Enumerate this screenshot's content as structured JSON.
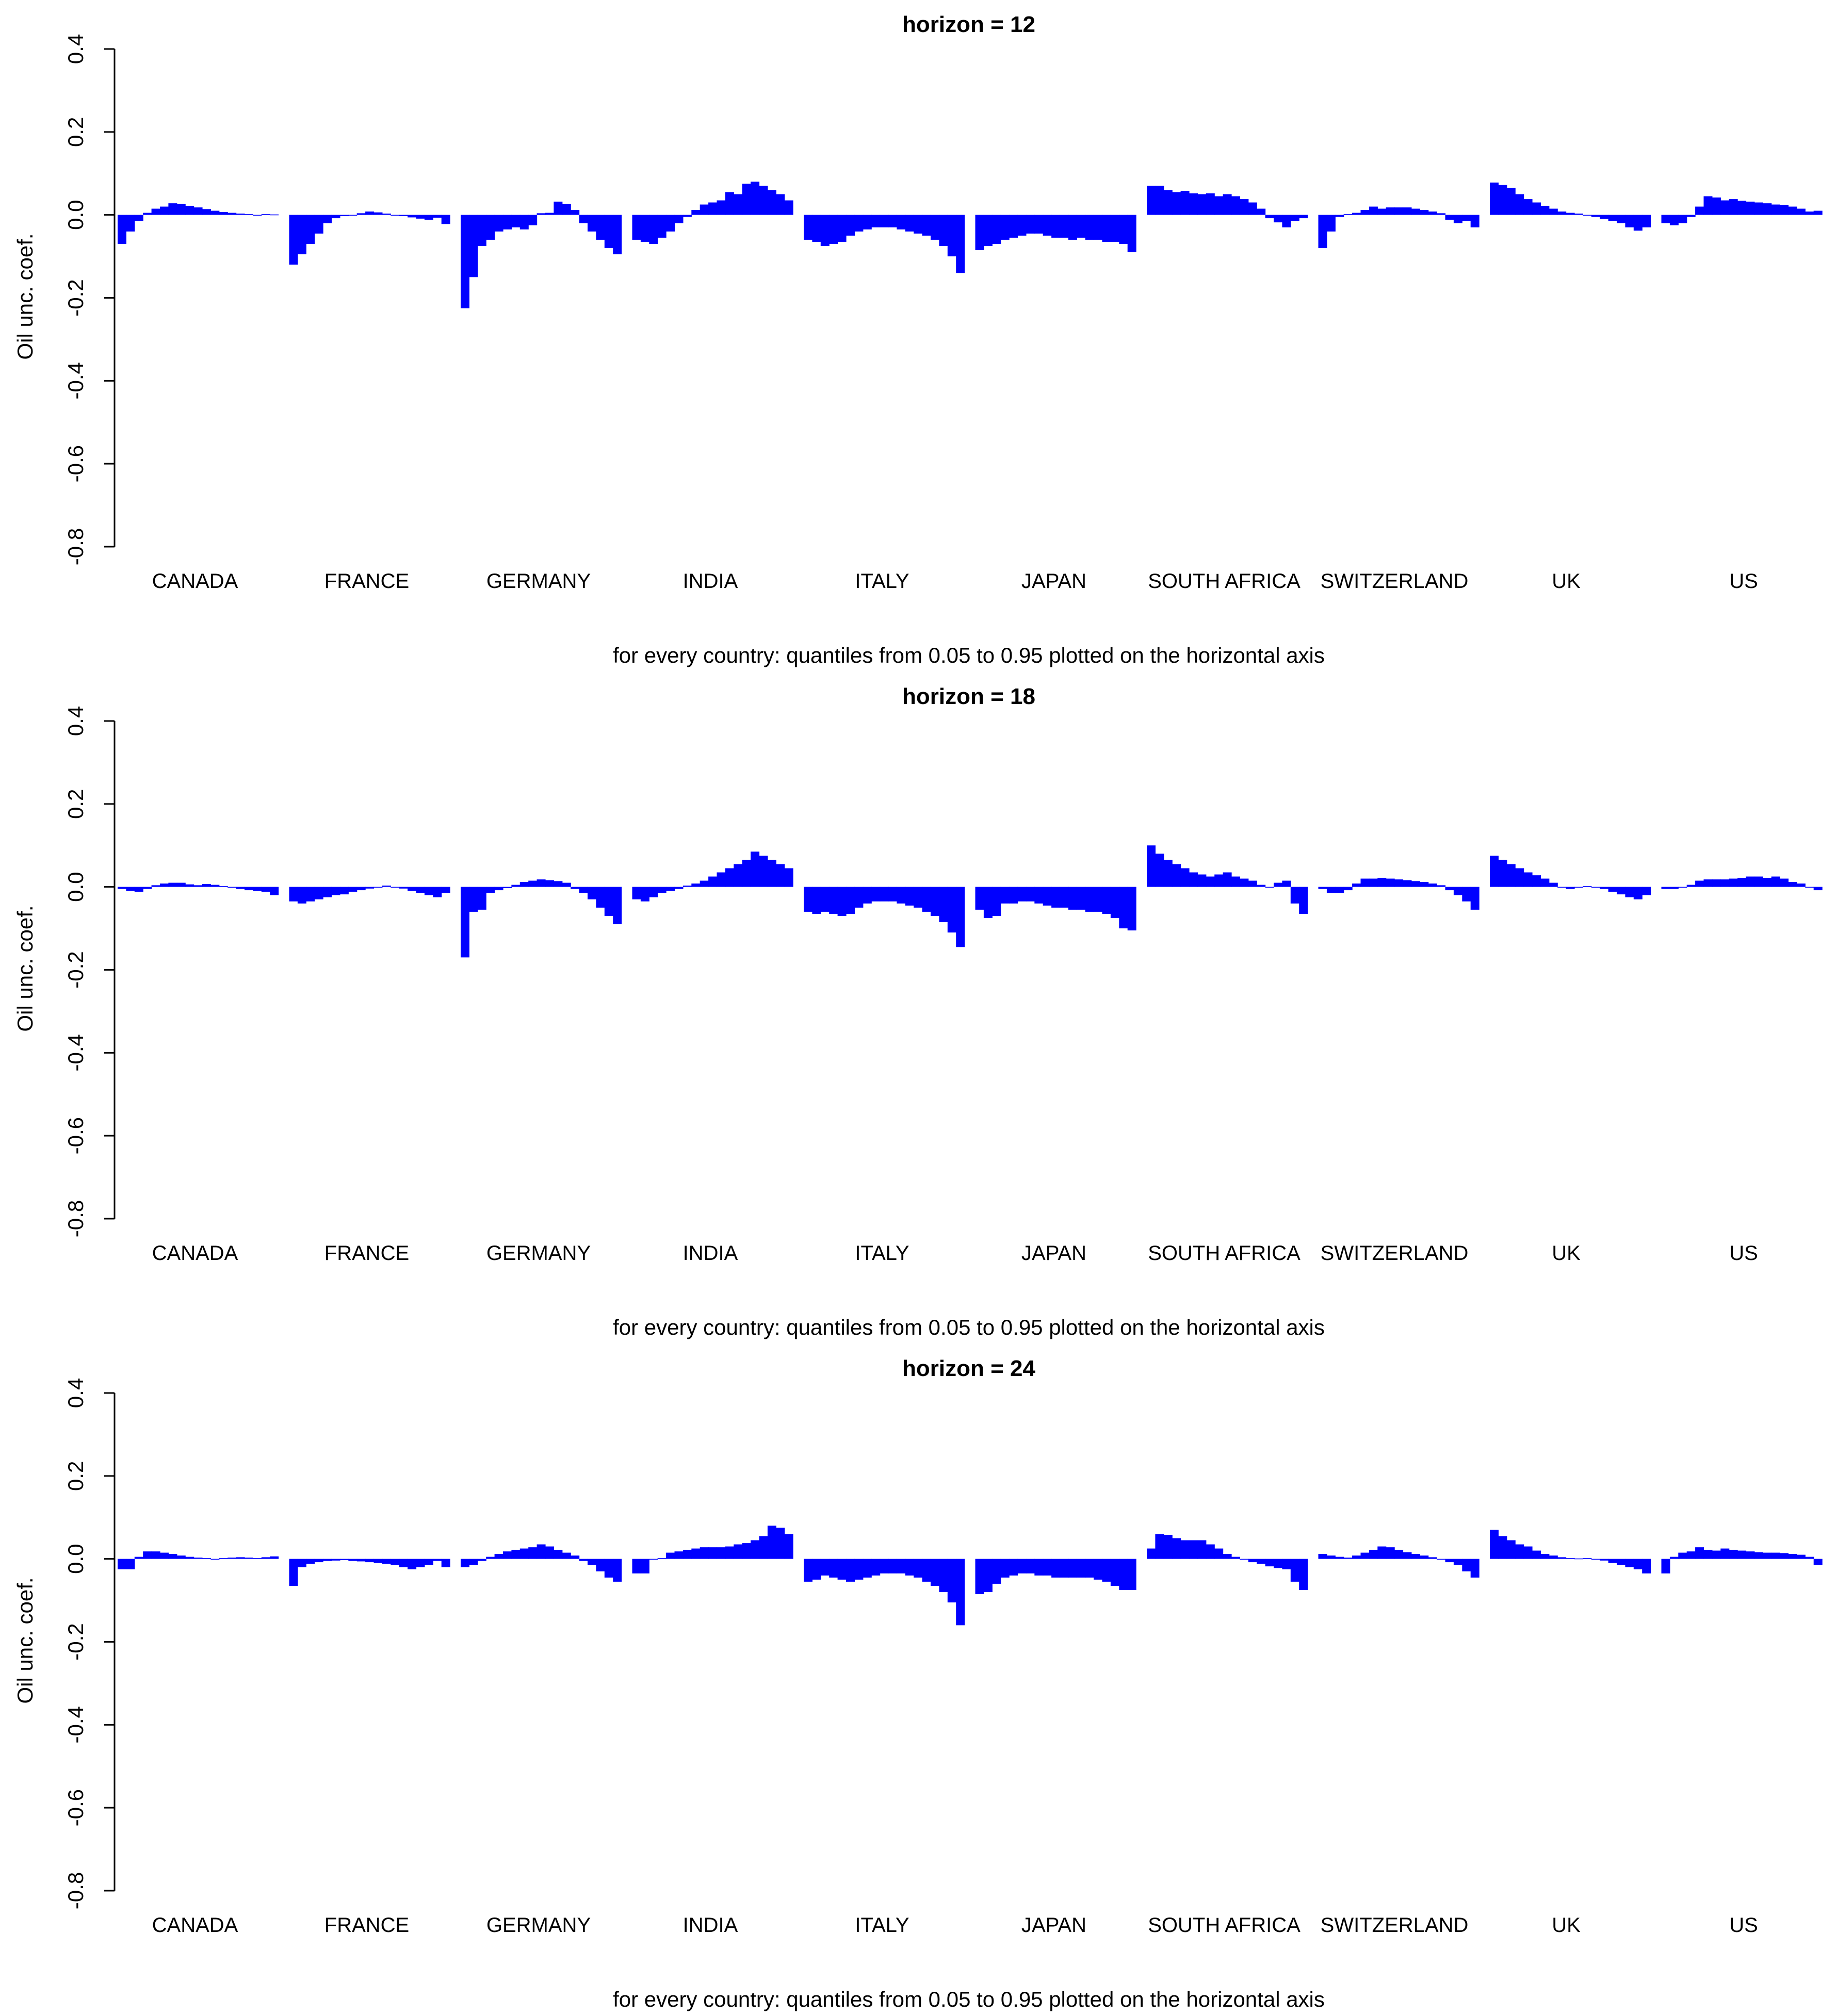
{
  "chart_data": [
    {
      "type": "bar",
      "title": "horizon = 12",
      "xlabel": "for every country: quantiles from 0.05 to 0.95 plotted on the horizontal axis",
      "ylabel": "Oil unc. coef.",
      "ylim": [
        -0.8,
        0.4
      ],
      "yticks": [
        "0.4",
        "0.2",
        "0.0",
        "-0.2",
        "-0.4",
        "-0.6",
        "-0.8"
      ],
      "ytick_values": [
        0.4,
        0.2,
        0.0,
        -0.2,
        -0.4,
        -0.6,
        -0.8
      ],
      "quantiles": [
        0.05,
        0.1,
        0.15,
        0.2,
        0.25,
        0.3,
        0.35,
        0.4,
        0.45,
        0.5,
        0.55,
        0.6,
        0.65,
        0.7,
        0.75,
        0.8,
        0.85,
        0.9,
        0.95
      ],
      "bar_color": "#0000ff",
      "series": [
        {
          "name": "CANADA",
          "values": [
            -0.07,
            -0.04,
            -0.015,
            0.005,
            0.015,
            0.02,
            0.028,
            0.026,
            0.022,
            0.018,
            0.014,
            0.01,
            0.007,
            0.005,
            0.003,
            0.002,
            0.0,
            0.002,
            0.001
          ]
        },
        {
          "name": "FRANCE",
          "values": [
            -0.12,
            -0.095,
            -0.07,
            -0.045,
            -0.02,
            -0.008,
            -0.003,
            0.0,
            0.004,
            0.008,
            0.006,
            0.003,
            0.0,
            -0.003,
            -0.006,
            -0.009,
            -0.012,
            -0.007,
            -0.022
          ]
        },
        {
          "name": "GERMANY",
          "values": [
            -0.225,
            -0.15,
            -0.075,
            -0.06,
            -0.04,
            -0.035,
            -0.03,
            -0.035,
            -0.025,
            0.004,
            0.005,
            0.032,
            0.026,
            0.012,
            -0.02,
            -0.04,
            -0.06,
            -0.08,
            -0.095
          ]
        },
        {
          "name": "INDIA",
          "values": [
            -0.06,
            -0.065,
            -0.07,
            -0.055,
            -0.04,
            -0.02,
            -0.005,
            0.012,
            0.025,
            0.03,
            0.035,
            0.055,
            0.05,
            0.075,
            0.08,
            0.07,
            0.06,
            0.05,
            0.035
          ]
        },
        {
          "name": "ITALY",
          "values": [
            -0.06,
            -0.065,
            -0.075,
            -0.07,
            -0.065,
            -0.05,
            -0.04,
            -0.035,
            -0.03,
            -0.03,
            -0.03,
            -0.035,
            -0.04,
            -0.045,
            -0.05,
            -0.06,
            -0.075,
            -0.1,
            -0.14
          ]
        },
        {
          "name": "JAPAN",
          "values": [
            -0.085,
            -0.075,
            -0.07,
            -0.06,
            -0.055,
            -0.05,
            -0.045,
            -0.045,
            -0.05,
            -0.055,
            -0.055,
            -0.06,
            -0.055,
            -0.06,
            -0.06,
            -0.065,
            -0.065,
            -0.07,
            -0.09
          ]
        },
        {
          "name": "SOUTH AFRICA",
          "values": [
            0.07,
            0.07,
            0.06,
            0.055,
            0.058,
            0.052,
            0.05,
            0.052,
            0.045,
            0.05,
            0.045,
            0.038,
            0.03,
            0.015,
            -0.008,
            -0.018,
            -0.03,
            -0.015,
            -0.008
          ]
        },
        {
          "name": "SWITZERLAND",
          "values": [
            -0.08,
            -0.04,
            -0.005,
            0.002,
            0.005,
            0.012,
            0.02,
            0.015,
            0.018,
            0.018,
            0.018,
            0.015,
            0.012,
            0.008,
            0.004,
            -0.012,
            -0.02,
            -0.015,
            -0.03
          ]
        },
        {
          "name": "UK",
          "values": [
            0.078,
            0.072,
            0.065,
            0.05,
            0.038,
            0.03,
            0.022,
            0.015,
            0.008,
            0.005,
            0.003,
            0.0,
            -0.005,
            -0.01,
            -0.015,
            -0.02,
            -0.03,
            -0.038,
            -0.03
          ]
        },
        {
          "name": "US",
          "values": [
            -0.02,
            -0.025,
            -0.02,
            -0.005,
            0.02,
            0.045,
            0.042,
            0.035,
            0.038,
            0.034,
            0.032,
            0.03,
            0.028,
            0.025,
            0.024,
            0.02,
            0.015,
            0.008,
            0.01
          ]
        }
      ]
    },
    {
      "type": "bar",
      "title": "horizon = 18",
      "xlabel": "for every country: quantiles from 0.05 to 0.95 plotted on the horizontal axis",
      "ylabel": "Oil unc. coef.",
      "ylim": [
        -0.8,
        0.4
      ],
      "yticks": [
        "0.4",
        "0.2",
        "0.0",
        "-0.2",
        "-0.4",
        "-0.6",
        "-0.8"
      ],
      "ytick_values": [
        0.4,
        0.2,
        0.0,
        -0.2,
        -0.4,
        -0.6,
        -0.8
      ],
      "quantiles": [
        0.05,
        0.1,
        0.15,
        0.2,
        0.25,
        0.3,
        0.35,
        0.4,
        0.45,
        0.5,
        0.55,
        0.6,
        0.65,
        0.7,
        0.75,
        0.8,
        0.85,
        0.9,
        0.95
      ],
      "bar_color": "#0000ff",
      "series": [
        {
          "name": "CANADA",
          "values": [
            -0.005,
            -0.01,
            -0.012,
            -0.005,
            0.004,
            0.008,
            0.01,
            0.01,
            0.006,
            0.004,
            0.007,
            0.005,
            0.002,
            -0.002,
            -0.005,
            -0.008,
            -0.01,
            -0.012,
            -0.02
          ]
        },
        {
          "name": "FRANCE",
          "values": [
            -0.035,
            -0.04,
            -0.035,
            -0.03,
            -0.025,
            -0.02,
            -0.018,
            -0.012,
            -0.008,
            -0.004,
            0.0,
            0.003,
            0.0,
            -0.004,
            -0.01,
            -0.015,
            -0.02,
            -0.025,
            -0.015
          ]
        },
        {
          "name": "GERMANY",
          "values": [
            -0.17,
            -0.06,
            -0.055,
            -0.015,
            -0.008,
            -0.003,
            0.005,
            0.012,
            0.015,
            0.018,
            0.016,
            0.014,
            0.01,
            -0.005,
            -0.015,
            -0.03,
            -0.05,
            -0.07,
            -0.09
          ]
        },
        {
          "name": "INDIA",
          "values": [
            -0.03,
            -0.035,
            -0.025,
            -0.015,
            -0.01,
            -0.005,
            0.003,
            0.008,
            0.015,
            0.025,
            0.035,
            0.045,
            0.055,
            0.065,
            0.085,
            0.075,
            0.065,
            0.055,
            0.045
          ]
        },
        {
          "name": "ITALY",
          "values": [
            -0.06,
            -0.065,
            -0.06,
            -0.065,
            -0.07,
            -0.065,
            -0.05,
            -0.04,
            -0.035,
            -0.035,
            -0.035,
            -0.04,
            -0.045,
            -0.05,
            -0.06,
            -0.07,
            -0.085,
            -0.11,
            -0.145
          ]
        },
        {
          "name": "JAPAN",
          "values": [
            -0.055,
            -0.075,
            -0.07,
            -0.04,
            -0.04,
            -0.035,
            -0.035,
            -0.04,
            -0.045,
            -0.05,
            -0.05,
            -0.055,
            -0.055,
            -0.06,
            -0.06,
            -0.065,
            -0.075,
            -0.1,
            -0.105
          ]
        },
        {
          "name": "SOUTH AFRICA",
          "values": [
            0.1,
            0.08,
            0.065,
            0.055,
            0.045,
            0.035,
            0.03,
            0.025,
            0.03,
            0.035,
            0.025,
            0.02,
            0.015,
            0.005,
            0.0,
            0.01,
            0.015,
            -0.04,
            -0.065
          ]
        },
        {
          "name": "SWITZERLAND",
          "values": [
            -0.005,
            -0.015,
            -0.015,
            -0.008,
            0.008,
            0.02,
            0.02,
            0.022,
            0.02,
            0.018,
            0.016,
            0.014,
            0.012,
            0.008,
            0.004,
            -0.008,
            -0.02,
            -0.035,
            -0.055
          ]
        },
        {
          "name": "UK",
          "values": [
            0.075,
            0.065,
            0.055,
            0.045,
            0.035,
            0.028,
            0.02,
            0.01,
            0.0,
            -0.005,
            0.0,
            0.002,
            0.0,
            -0.005,
            -0.012,
            -0.018,
            -0.025,
            -0.03,
            -0.02
          ]
        },
        {
          "name": "US",
          "values": [
            -0.005,
            -0.005,
            0.0,
            0.005,
            0.015,
            0.018,
            0.018,
            0.018,
            0.02,
            0.022,
            0.025,
            0.025,
            0.022,
            0.025,
            0.02,
            0.012,
            0.008,
            0.0,
            -0.008
          ]
        }
      ]
    },
    {
      "type": "bar",
      "title": "horizon = 24",
      "xlabel": "for every country: quantiles from 0.05 to 0.95 plotted on the horizontal axis",
      "ylabel": "Oil unc. coef.",
      "ylim": [
        -0.8,
        0.4
      ],
      "yticks": [
        "0.4",
        "0.2",
        "0.0",
        "-0.2",
        "-0.4",
        "-0.6",
        "-0.8"
      ],
      "ytick_values": [
        0.4,
        0.2,
        0.0,
        -0.2,
        -0.4,
        -0.6,
        -0.8
      ],
      "quantiles": [
        0.05,
        0.1,
        0.15,
        0.2,
        0.25,
        0.3,
        0.35,
        0.4,
        0.45,
        0.5,
        0.55,
        0.6,
        0.65,
        0.7,
        0.75,
        0.8,
        0.85,
        0.9,
        0.95
      ],
      "bar_color": "#0000ff",
      "series": [
        {
          "name": "CANADA",
          "values": [
            -0.025,
            -0.025,
            0.005,
            0.018,
            0.018,
            0.015,
            0.012,
            0.008,
            0.005,
            0.003,
            0.002,
            0.0,
            0.002,
            0.003,
            0.004,
            0.003,
            0.002,
            0.004,
            0.006
          ]
        },
        {
          "name": "FRANCE",
          "values": [
            -0.065,
            -0.02,
            -0.012,
            -0.008,
            -0.005,
            -0.004,
            -0.003,
            -0.005,
            -0.006,
            -0.008,
            -0.01,
            -0.012,
            -0.015,
            -0.02,
            -0.025,
            -0.02,
            -0.015,
            -0.005,
            -0.02
          ]
        },
        {
          "name": "GERMANY",
          "values": [
            -0.02,
            -0.015,
            -0.005,
            0.005,
            0.012,
            0.018,
            0.022,
            0.025,
            0.028,
            0.035,
            0.03,
            0.022,
            0.015,
            0.008,
            -0.005,
            -0.015,
            -0.03,
            -0.045,
            -0.055
          ]
        },
        {
          "name": "INDIA",
          "values": [
            -0.035,
            -0.035,
            0.0,
            0.002,
            0.015,
            0.018,
            0.022,
            0.025,
            0.028,
            0.028,
            0.028,
            0.03,
            0.035,
            0.038,
            0.045,
            0.055,
            0.08,
            0.075,
            0.06
          ]
        },
        {
          "name": "ITALY",
          "values": [
            -0.055,
            -0.05,
            -0.04,
            -0.045,
            -0.05,
            -0.055,
            -0.05,
            -0.045,
            -0.04,
            -0.035,
            -0.035,
            -0.035,
            -0.04,
            -0.045,
            -0.055,
            -0.065,
            -0.08,
            -0.105,
            -0.16
          ]
        },
        {
          "name": "JAPAN",
          "values": [
            -0.085,
            -0.08,
            -0.06,
            -0.045,
            -0.04,
            -0.035,
            -0.035,
            -0.04,
            -0.04,
            -0.045,
            -0.045,
            -0.045,
            -0.045,
            -0.045,
            -0.05,
            -0.055,
            -0.065,
            -0.075,
            -0.075
          ]
        },
        {
          "name": "SOUTH AFRICA",
          "values": [
            0.025,
            0.06,
            0.058,
            0.05,
            0.045,
            0.045,
            0.045,
            0.035,
            0.025,
            0.012,
            0.005,
            0.0,
            -0.008,
            -0.012,
            -0.018,
            -0.022,
            -0.025,
            -0.055,
            -0.075
          ]
        },
        {
          "name": "SWITZERLAND",
          "values": [
            0.012,
            0.008,
            0.005,
            0.003,
            0.008,
            0.015,
            0.022,
            0.03,
            0.028,
            0.022,
            0.016,
            0.012,
            0.008,
            0.004,
            0.0,
            -0.008,
            -0.015,
            -0.03,
            -0.045
          ]
        },
        {
          "name": "UK",
          "values": [
            0.07,
            0.055,
            0.045,
            0.035,
            0.03,
            0.02,
            0.012,
            0.008,
            0.004,
            0.002,
            0.001,
            0.002,
            0.0,
            -0.004,
            -0.01,
            -0.015,
            -0.02,
            -0.025,
            -0.035
          ]
        },
        {
          "name": "US",
          "values": [
            -0.035,
            0.005,
            0.015,
            0.018,
            0.028,
            0.022,
            0.02,
            0.025,
            0.022,
            0.02,
            0.018,
            0.016,
            0.015,
            0.015,
            0.014,
            0.012,
            0.01,
            0.005,
            -0.015
          ]
        }
      ]
    }
  ]
}
